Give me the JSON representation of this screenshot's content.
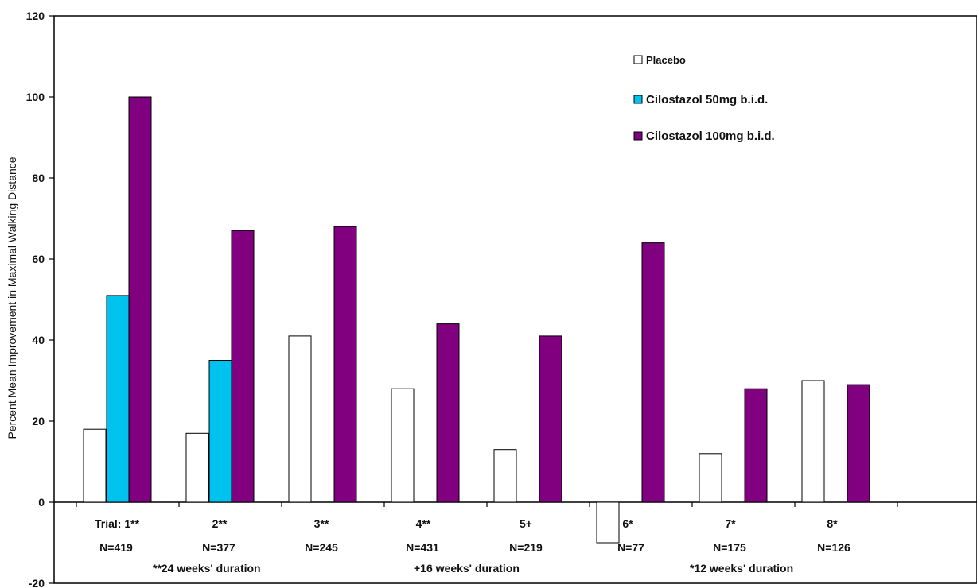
{
  "chart_data": {
    "type": "bar",
    "ylabel": "Percent Mean Improvement in Maximal Walking Distance",
    "ylim": [
      -20,
      120
    ],
    "yticks": [
      -20,
      0,
      20,
      40,
      60,
      80,
      100,
      120
    ],
    "grid": false,
    "legend_position": "top-right",
    "categories": [
      {
        "trial": "Trial: 1**",
        "n": "N=419"
      },
      {
        "trial": "2**",
        "n": "N=377"
      },
      {
        "trial": "3**",
        "n": "N=245"
      },
      {
        "trial": "4**",
        "n": "N=431"
      },
      {
        "trial": "5+",
        "n": "N=219"
      },
      {
        "trial": "6*",
        "n": "N=77"
      },
      {
        "trial": "7*",
        "n": "N=175"
      },
      {
        "trial": "8*",
        "n": "N=126"
      }
    ],
    "series": [
      {
        "name": "Placebo",
        "color": "#ffffff",
        "values": [
          18,
          17,
          41,
          28,
          13,
          -10,
          12,
          30
        ]
      },
      {
        "name": "Cilostazol 50mg b.i.d.",
        "color": "#00c2ee",
        "values": [
          51,
          35,
          null,
          null,
          null,
          null,
          null,
          null
        ]
      },
      {
        "name": "Cilostazol 100mg b.i.d.",
        "color": "#800080",
        "values": [
          100,
          67,
          68,
          44,
          41,
          64,
          28,
          29
        ]
      }
    ],
    "duration_notes": [
      "**24 weeks' duration",
      "+16 weeks' duration",
      "*12 weeks' duration"
    ]
  }
}
